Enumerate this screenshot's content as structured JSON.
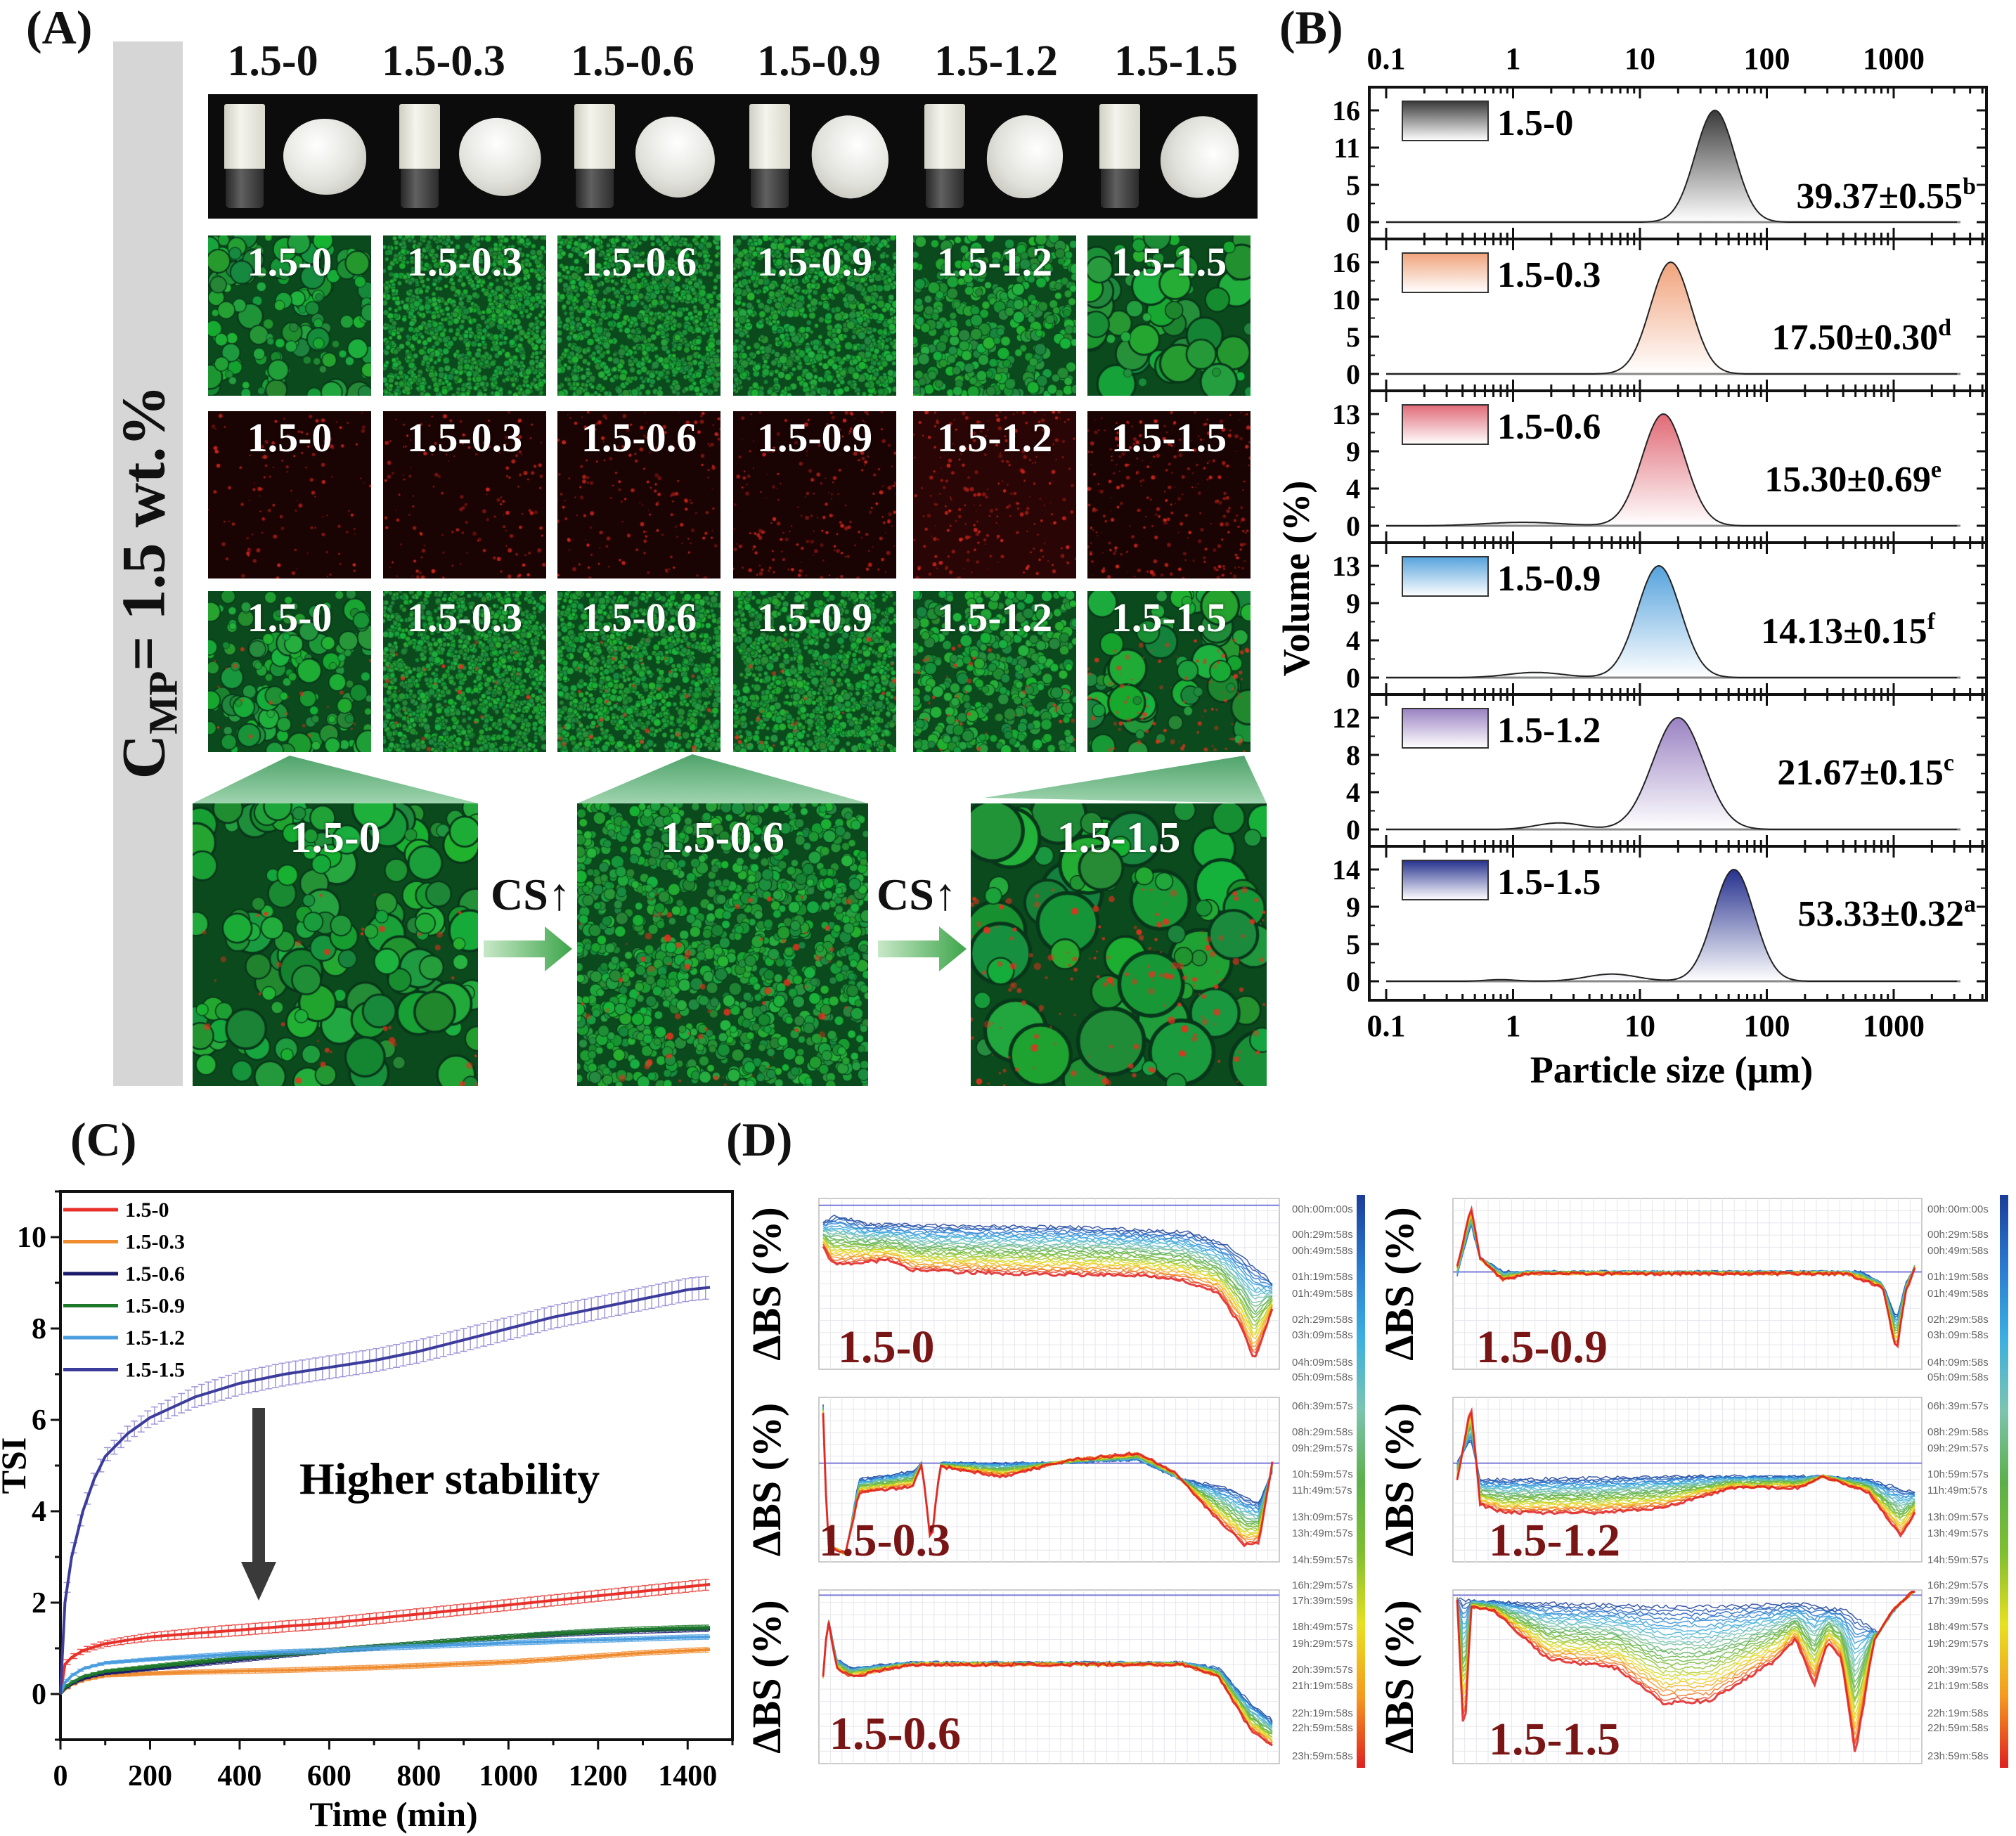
{
  "panel_labels": {
    "a": "(A)",
    "b": "(B)",
    "c": "(C)",
    "d": "(D)"
  },
  "panel_a": {
    "side_label": {
      "main": "C",
      "sub": "MP",
      "rest": "= 1.5 wt.%"
    },
    "samples": [
      "1.5-0",
      "1.5-0.3",
      "1.5-0.6",
      "1.5-0.9",
      "1.5-1.2",
      "1.5-1.5"
    ],
    "zoom_samples": [
      "1.5-0",
      "1.5-0.6",
      "1.5-1.5"
    ],
    "arrow_label": "CS↑",
    "colors": {
      "green_channel": "#1f9a3a",
      "red_channel": "#d02020",
      "sidebar": "#d6d6d6"
    }
  },
  "chart_data": [
    {
      "id": "B",
      "type": "area",
      "title": "",
      "xlabel": "Particle size (μm)",
      "ylabel": "Volume (%)",
      "xscale": "log",
      "xticks": [
        "0.1",
        "1",
        "10",
        "100",
        "1000"
      ],
      "xlim": [
        0.074,
        5400
      ],
      "panels": [
        {
          "name": "1.5-0",
          "color": "#3a3a3a",
          "yticks": [
            "0",
            "5",
            "11",
            "16"
          ],
          "ymax": 16,
          "peak_um": 39,
          "peak_value": 16,
          "width_decades": 0.155,
          "minor_peaks": [],
          "annotation": "39.37±0.55",
          "superscript": "b"
        },
        {
          "name": "1.5-0.3",
          "color": "#f0a37c",
          "yticks": [
            "0",
            "5",
            "10",
            "16"
          ],
          "ymax": 16,
          "peak_um": 17.5,
          "peak_value": 16,
          "width_decades": 0.16,
          "minor_peaks": [],
          "annotation": "17.50±0.30",
          "superscript": "d"
        },
        {
          "name": "1.5-0.6",
          "color": "#e06a76",
          "yticks": [
            "0",
            "4",
            "9",
            "13"
          ],
          "ymax": 13,
          "peak_um": 15.3,
          "peak_value": 13,
          "width_decades": 0.17,
          "minor_peaks": [
            {
              "um": 1.2,
              "value": 0.4,
              "width_decades": 0.3
            }
          ],
          "annotation": "15.30±0.69",
          "superscript": "e"
        },
        {
          "name": "1.5-0.9",
          "color": "#55a2dc",
          "yticks": [
            "0",
            "4",
            "9",
            "13"
          ],
          "ymax": 13,
          "peak_um": 14.1,
          "peak_value": 13,
          "width_decades": 0.17,
          "minor_peaks": [
            {
              "um": 1.5,
              "value": 0.6,
              "width_decades": 0.22
            }
          ],
          "annotation": "14.13±0.15",
          "superscript": "f"
        },
        {
          "name": "1.5-1.2",
          "color": "#9a82c2",
          "yticks": [
            "0",
            "4",
            "8",
            "12"
          ],
          "ymax": 12,
          "peak_um": 20,
          "peak_value": 12,
          "width_decades": 0.2,
          "minor_peaks": [
            {
              "um": 2.3,
              "value": 0.7,
              "width_decades": 0.18
            }
          ],
          "annotation": "21.67±0.15",
          "superscript": "c"
        },
        {
          "name": "1.5-1.5",
          "color": "#26318e",
          "yticks": [
            "0",
            "5",
            "9",
            "14"
          ],
          "ymax": 14,
          "peak_um": 55,
          "peak_value": 14,
          "width_decades": 0.16,
          "minor_peaks": [
            {
              "um": 0.8,
              "value": 0.2,
              "width_decades": 0.12
            },
            {
              "um": 6,
              "value": 0.9,
              "width_decades": 0.2
            }
          ],
          "annotation": "53.33±0.32",
          "superscript": "a"
        }
      ]
    },
    {
      "id": "C",
      "type": "line",
      "title": "",
      "xlabel": "Time (min)",
      "ylabel": "TSI",
      "xlim": [
        0,
        1500
      ],
      "ylim": [
        -1,
        11
      ],
      "xticks": [
        0,
        200,
        400,
        600,
        800,
        1000,
        1200,
        1400
      ],
      "yticks": [
        0,
        2,
        4,
        6,
        8,
        10
      ],
      "legend": "top-left",
      "annotation": "Higher stability",
      "x": [
        0,
        10,
        25,
        50,
        75,
        100,
        150,
        200,
        300,
        400,
        500,
        600,
        700,
        800,
        900,
        1000,
        1100,
        1200,
        1300,
        1400,
        1450
      ],
      "series": [
        {
          "name": "1.5-0",
          "color": "#e8302a",
          "error": 0.12,
          "values": [
            0,
            0.65,
            0.8,
            0.95,
            1.03,
            1.1,
            1.18,
            1.25,
            1.33,
            1.4,
            1.48,
            1.55,
            1.65,
            1.75,
            1.85,
            1.95,
            2.05,
            2.15,
            2.25,
            2.35,
            2.4
          ]
        },
        {
          "name": "1.5-0.3",
          "color": "#f08c30",
          "error": 0.05,
          "values": [
            0,
            0.1,
            0.2,
            0.3,
            0.35,
            0.4,
            0.42,
            0.45,
            0.48,
            0.5,
            0.52,
            0.55,
            0.58,
            0.62,
            0.66,
            0.7,
            0.76,
            0.83,
            0.9,
            0.95,
            0.97
          ]
        },
        {
          "name": "1.5-0.6",
          "color": "#1b1b6b",
          "error": 0.05,
          "values": [
            0,
            0.12,
            0.22,
            0.33,
            0.4,
            0.45,
            0.5,
            0.55,
            0.65,
            0.75,
            0.85,
            0.95,
            1.02,
            1.1,
            1.18,
            1.25,
            1.3,
            1.35,
            1.38,
            1.41,
            1.42
          ]
        },
        {
          "name": "1.5-0.9",
          "color": "#1e7a2a",
          "error": 0.05,
          "values": [
            0,
            0.15,
            0.25,
            0.38,
            0.44,
            0.5,
            0.55,
            0.6,
            0.7,
            0.8,
            0.88,
            0.95,
            1.03,
            1.1,
            1.18,
            1.25,
            1.32,
            1.38,
            1.42,
            1.45,
            1.46
          ]
        },
        {
          "name": "1.5-1.2",
          "color": "#4a9ee0",
          "error": 0.05,
          "values": [
            0,
            0.25,
            0.4,
            0.55,
            0.62,
            0.68,
            0.72,
            0.76,
            0.82,
            0.88,
            0.92,
            0.95,
            1.0,
            1.04,
            1.08,
            1.12,
            1.15,
            1.18,
            1.21,
            1.24,
            1.25
          ]
        },
        {
          "name": "1.5-1.5",
          "color": "#3c3c9c",
          "error": 0.25,
          "values": [
            0,
            2.0,
            3.0,
            4.0,
            4.7,
            5.2,
            5.7,
            6.05,
            6.5,
            6.8,
            7.0,
            7.15,
            7.3,
            7.5,
            7.75,
            8.0,
            8.25,
            8.45,
            8.65,
            8.85,
            8.9
          ]
        }
      ]
    },
    {
      "id": "D",
      "type": "line",
      "ylabel": "ΔBS (%)",
      "label_color": "#7a1515",
      "colorbar_labels": [
        "00h:00m:00s",
        "00h:29m:58s",
        "00h:49m:58s",
        "01h:19m:58s",
        "01h:49m:58s",
        "02h:29m:58s",
        "03h:09m:58s",
        "04h:09m:58s",
        "05h:09m:58s",
        "06h:39m:57s",
        "08h:29m:58s",
        "09h:29m:57s",
        "10h:59m:57s",
        "11h:49m:57s",
        "13h:09m:57s",
        "13h:49m:57s",
        "14h:59m:57s",
        "16h:29m:57s",
        "17h:39m:59s",
        "18h:49m:57s",
        "19h:29m:57s",
        "20h:39m:57s",
        "21h:19m:58s",
        "22h:19m:58s",
        "22h:59m:58s",
        "23h:59m:58s"
      ],
      "colormap": [
        "#1a3d99",
        "#2a7ad0",
        "#3ab0e0",
        "#7cc4b0",
        "#5bb04a",
        "#7fbf30",
        "#e8e020",
        "#f59a20",
        "#e02020"
      ],
      "plots": [
        {
          "label": "1.5-0",
          "reference": 0.96,
          "start": [
            [
              0,
              0.86
            ],
            [
              0.03,
              0.9
            ],
            [
              0.1,
              0.85
            ],
            [
              0.3,
              0.84
            ],
            [
              0.6,
              0.83
            ],
            [
              0.82,
              0.8
            ],
            [
              0.9,
              0.72
            ],
            [
              0.95,
              0.62
            ],
            [
              0.97,
              0.58
            ],
            [
              1,
              0.5
            ]
          ],
          "end": [
            [
              0,
              0.72
            ],
            [
              0.02,
              0.62
            ],
            [
              0.05,
              0.62
            ],
            [
              0.15,
              0.64
            ],
            [
              0.2,
              0.58
            ],
            [
              0.4,
              0.56
            ],
            [
              0.7,
              0.55
            ],
            [
              0.8,
              0.52
            ],
            [
              0.88,
              0.45
            ],
            [
              0.93,
              0.25
            ],
            [
              0.96,
              0.05
            ],
            [
              1,
              0.35
            ]
          ]
        },
        {
          "label": "1.5-0.3",
          "reference": 0.6,
          "start": [
            [
              0,
              0.95
            ],
            [
              0.01,
              0.1
            ],
            [
              0.05,
              0.05
            ],
            [
              0.08,
              0.5
            ],
            [
              0.2,
              0.55
            ],
            [
              0.22,
              0.6
            ],
            [
              0.24,
              0.1
            ],
            [
              0.26,
              0.6
            ],
            [
              0.5,
              0.6
            ],
            [
              0.7,
              0.62
            ],
            [
              0.8,
              0.5
            ],
            [
              0.9,
              0.45
            ],
            [
              0.97,
              0.35
            ],
            [
              1,
              0.55
            ]
          ],
          "end": [
            [
              0,
              0.9
            ],
            [
              0.01,
              0.1
            ],
            [
              0.05,
              0.05
            ],
            [
              0.08,
              0.42
            ],
            [
              0.2,
              0.46
            ],
            [
              0.22,
              0.6
            ],
            [
              0.24,
              0.1
            ],
            [
              0.26,
              0.58
            ],
            [
              0.4,
              0.52
            ],
            [
              0.55,
              0.62
            ],
            [
              0.7,
              0.66
            ],
            [
              0.78,
              0.55
            ],
            [
              0.88,
              0.25
            ],
            [
              0.94,
              0.1
            ],
            [
              0.97,
              0.12
            ],
            [
              1,
              0.6
            ]
          ]
        },
        {
          "label": "1.5-0.6",
          "reference": 0.97,
          "start": [
            [
              0,
              0.5
            ],
            [
              0.01,
              0.85
            ],
            [
              0.03,
              0.6
            ],
            [
              0.06,
              0.55
            ],
            [
              0.2,
              0.58
            ],
            [
              0.5,
              0.58
            ],
            [
              0.8,
              0.58
            ],
            [
              0.88,
              0.55
            ],
            [
              0.95,
              0.35
            ],
            [
              1,
              0.25
            ]
          ],
          "end": [
            [
              0,
              0.5
            ],
            [
              0.01,
              0.85
            ],
            [
              0.03,
              0.55
            ],
            [
              0.06,
              0.5
            ],
            [
              0.2,
              0.57
            ],
            [
              0.5,
              0.57
            ],
            [
              0.8,
              0.57
            ],
            [
              0.88,
              0.5
            ],
            [
              0.95,
              0.2
            ],
            [
              1,
              0.1
            ]
          ]
        },
        {
          "label": "1.5-0.9",
          "reference": 0.57,
          "start": [
            [
              0,
              0.55
            ],
            [
              0.03,
              0.85
            ],
            [
              0.05,
              0.65
            ],
            [
              0.1,
              0.57
            ],
            [
              0.5,
              0.57
            ],
            [
              0.88,
              0.57
            ],
            [
              0.93,
              0.5
            ],
            [
              0.96,
              0.3
            ],
            [
              0.98,
              0.5
            ],
            [
              1,
              0.6
            ]
          ],
          "end": [
            [
              0,
              0.6
            ],
            [
              0.03,
              0.95
            ],
            [
              0.05,
              0.65
            ],
            [
              0.1,
              0.52
            ],
            [
              0.15,
              0.56
            ],
            [
              0.5,
              0.56
            ],
            [
              0.85,
              0.56
            ],
            [
              0.93,
              0.48
            ],
            [
              0.96,
              0.1
            ],
            [
              0.98,
              0.45
            ],
            [
              1,
              0.6
            ]
          ]
        },
        {
          "label": "1.5-1.2",
          "reference": 0.6,
          "start": [
            [
              0,
              0.6
            ],
            [
              0.03,
              0.75
            ],
            [
              0.05,
              0.5
            ],
            [
              0.1,
              0.5
            ],
            [
              0.5,
              0.52
            ],
            [
              0.8,
              0.52
            ],
            [
              0.9,
              0.5
            ],
            [
              1,
              0.42
            ]
          ],
          "end": [
            [
              0,
              0.5
            ],
            [
              0.03,
              0.95
            ],
            [
              0.05,
              0.35
            ],
            [
              0.1,
              0.3
            ],
            [
              0.3,
              0.3
            ],
            [
              0.45,
              0.33
            ],
            [
              0.6,
              0.45
            ],
            [
              0.75,
              0.45
            ],
            [
              0.8,
              0.52
            ],
            [
              0.9,
              0.42
            ],
            [
              0.97,
              0.15
            ],
            [
              1,
              0.3
            ]
          ]
        },
        {
          "label": "1.5-1.5",
          "reference": 0.97,
          "start": [
            [
              0,
              0.95
            ],
            [
              0.02,
              0.94
            ],
            [
              0.1,
              0.93
            ],
            [
              0.5,
              0.9
            ],
            [
              0.75,
              0.92
            ],
            [
              0.85,
              0.88
            ],
            [
              0.92,
              0.75
            ],
            [
              0.96,
              0.9
            ],
            [
              1,
              1
            ]
          ],
          "end": [
            [
              0,
              0.95
            ],
            [
              0.015,
              0.1
            ],
            [
              0.03,
              0.9
            ],
            [
              0.08,
              0.88
            ],
            [
              0.2,
              0.6
            ],
            [
              0.35,
              0.55
            ],
            [
              0.45,
              0.35
            ],
            [
              0.55,
              0.36
            ],
            [
              0.7,
              0.6
            ],
            [
              0.74,
              0.72
            ],
            [
              0.78,
              0.45
            ],
            [
              0.81,
              0.7
            ],
            [
              0.84,
              0.6
            ],
            [
              0.87,
              0.05
            ],
            [
              0.91,
              0.7
            ],
            [
              0.95,
              0.88
            ],
            [
              1,
              1
            ]
          ]
        }
      ]
    }
  ]
}
